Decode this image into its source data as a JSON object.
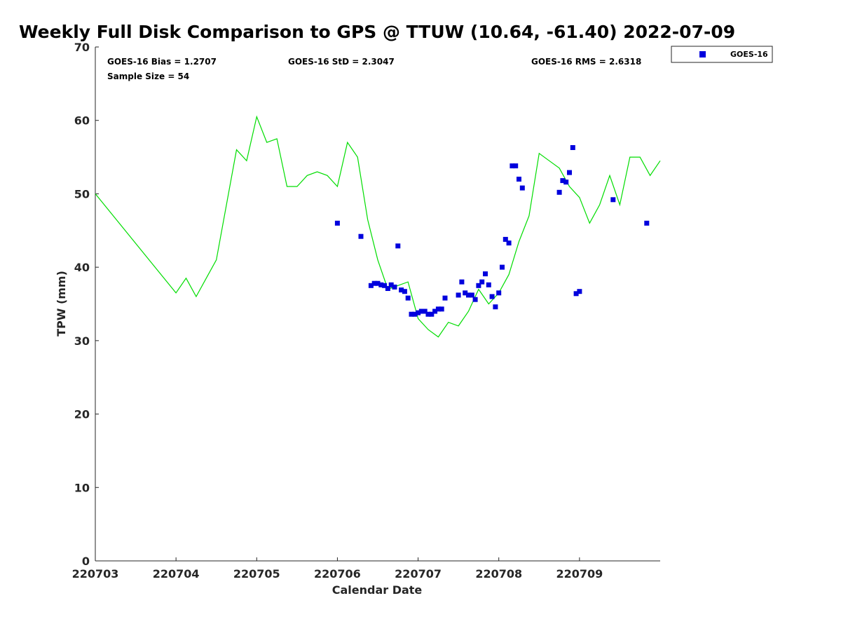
{
  "chart_data": {
    "type": "scatter",
    "title": "Weekly Full Disk Comparison to GPS @ TTUW (10.64, -61.40) 2022-07-09",
    "xlabel": "Calendar Date",
    "ylabel": "TPW (mm)",
    "xlim": [
      "220703",
      "220710"
    ],
    "ylim": [
      0,
      70
    ],
    "yticks": [
      "0",
      "10",
      "20",
      "30",
      "40",
      "50",
      "60",
      "70"
    ],
    "xticks": [
      "220703",
      "220704",
      "220705",
      "220706",
      "220707",
      "220708",
      "220709"
    ],
    "grid": false,
    "legend_position": "top-right",
    "stats": {
      "bias": "GOES-16 Bias = 1.2707",
      "std": "GOES-16 StD = 2.3047",
      "rms": "GOES-16 RMS = 2.6318",
      "sample": "Sample Size = 54"
    },
    "series": [
      {
        "name": "GOES-16",
        "kind": "scatter",
        "color": "#0000dd",
        "x": [
          "2022-07-06 00:00",
          "2022-07-06 10:00",
          "2022-07-06 11:00",
          "2022-07-06 12:00",
          "2022-07-06 13:00",
          "2022-07-06 14:00",
          "2022-07-06 15:00",
          "2022-07-06 16:00",
          "2022-07-06 17:00",
          "2022-07-06 19:00",
          "2022-07-06 20:00",
          "2022-07-06 21:00",
          "2022-07-06 22:00",
          "2022-07-06 23:00",
          "2022-07-07 00:00",
          "2022-07-07 01:00",
          "2022-07-07 02:00",
          "2022-07-07 03:00",
          "2022-07-07 04:00",
          "2022-07-07 05:00",
          "2022-07-07 06:00",
          "2022-07-07 07:00",
          "2022-07-07 08:00",
          "2022-07-07 12:00",
          "2022-07-07 13:00",
          "2022-07-07 14:00",
          "2022-07-07 15:00",
          "2022-07-07 16:00",
          "2022-07-07 17:00",
          "2022-07-07 18:00",
          "2022-07-07 19:00",
          "2022-07-07 20:00",
          "2022-07-07 21:00",
          "2022-07-07 22:00",
          "2022-07-07 23:00",
          "2022-07-08 00:00",
          "2022-07-08 01:00",
          "2022-07-08 02:00",
          "2022-07-08 03:00",
          "2022-07-08 04:00",
          "2022-07-08 05:00",
          "2022-07-08 06:00",
          "2022-07-08 07:00",
          "2022-07-08 18:00",
          "2022-07-08 19:00",
          "2022-07-08 20:00",
          "2022-07-08 21:00",
          "2022-07-08 22:00",
          "2022-07-08 23:00",
          "2022-07-09 00:00",
          "2022-07-09 10:00",
          "2022-07-09 20:00",
          "2022-07-06 07:00",
          "2022-07-06 18:00"
        ],
        "y": [
          46.0,
          37.5,
          37.8,
          37.8,
          37.6,
          37.5,
          37.1,
          37.6,
          37.3,
          36.9,
          36.7,
          35.8,
          33.6,
          33.6,
          33.8,
          34.0,
          34.0,
          33.6,
          33.6,
          34.0,
          34.3,
          34.3,
          35.8,
          36.2,
          38.0,
          36.5,
          36.2,
          36.2,
          35.6,
          37.5,
          38.0,
          39.1,
          37.6,
          36.0,
          34.6,
          36.5,
          40.0,
          43.8,
          43.3,
          53.8,
          53.8,
          52.0,
          50.8,
          50.2,
          51.8,
          51.6,
          52.9,
          56.3,
          36.4,
          36.7,
          49.2,
          46.0,
          44.2,
          42.9
        ]
      },
      {
        "name": "GPS",
        "kind": "line",
        "color": "#00dd00",
        "x": [
          "2022-07-03 00:00",
          "2022-07-04 00:00",
          "2022-07-04 03:00",
          "2022-07-04 06:00",
          "2022-07-04 09:00",
          "2022-07-04 12:00",
          "2022-07-04 15:00",
          "2022-07-04 18:00",
          "2022-07-04 21:00",
          "2022-07-05 00:00",
          "2022-07-05 03:00",
          "2022-07-05 06:00",
          "2022-07-05 09:00",
          "2022-07-05 12:00",
          "2022-07-05 15:00",
          "2022-07-05 18:00",
          "2022-07-05 21:00",
          "2022-07-06 00:00",
          "2022-07-06 03:00",
          "2022-07-06 06:00",
          "2022-07-06 09:00",
          "2022-07-06 12:00",
          "2022-07-06 15:00",
          "2022-07-06 18:00",
          "2022-07-06 21:00",
          "2022-07-07 00:00",
          "2022-07-07 03:00",
          "2022-07-07 06:00",
          "2022-07-07 09:00",
          "2022-07-07 12:00",
          "2022-07-07 15:00",
          "2022-07-07 18:00",
          "2022-07-07 21:00",
          "2022-07-08 00:00",
          "2022-07-08 03:00",
          "2022-07-08 06:00",
          "2022-07-08 09:00",
          "2022-07-08 12:00",
          "2022-07-08 15:00",
          "2022-07-08 18:00",
          "2022-07-08 21:00",
          "2022-07-09 00:00",
          "2022-07-09 03:00",
          "2022-07-09 06:00",
          "2022-07-09 09:00",
          "2022-07-09 12:00",
          "2022-07-09 15:00",
          "2022-07-09 18:00",
          "2022-07-09 21:00",
          "2022-07-10 00:00"
        ],
        "y": [
          50.0,
          36.5,
          38.5,
          36.0,
          38.5,
          41.0,
          48.5,
          56.0,
          54.5,
          60.5,
          57.0,
          57.5,
          51.0,
          51.0,
          52.5,
          53.0,
          52.5,
          51.0,
          57.0,
          55.0,
          46.5,
          41.0,
          37.0,
          37.5,
          38.0,
          33.0,
          31.5,
          30.5,
          32.5,
          32.0,
          34.0,
          37.0,
          35.0,
          36.5,
          39.0,
          43.5,
          47.0,
          55.5,
          54.5,
          53.5,
          51.0,
          49.5,
          46.0,
          48.5,
          52.5,
          48.5,
          55.0,
          55.0,
          52.5,
          54.5
        ]
      }
    ]
  }
}
